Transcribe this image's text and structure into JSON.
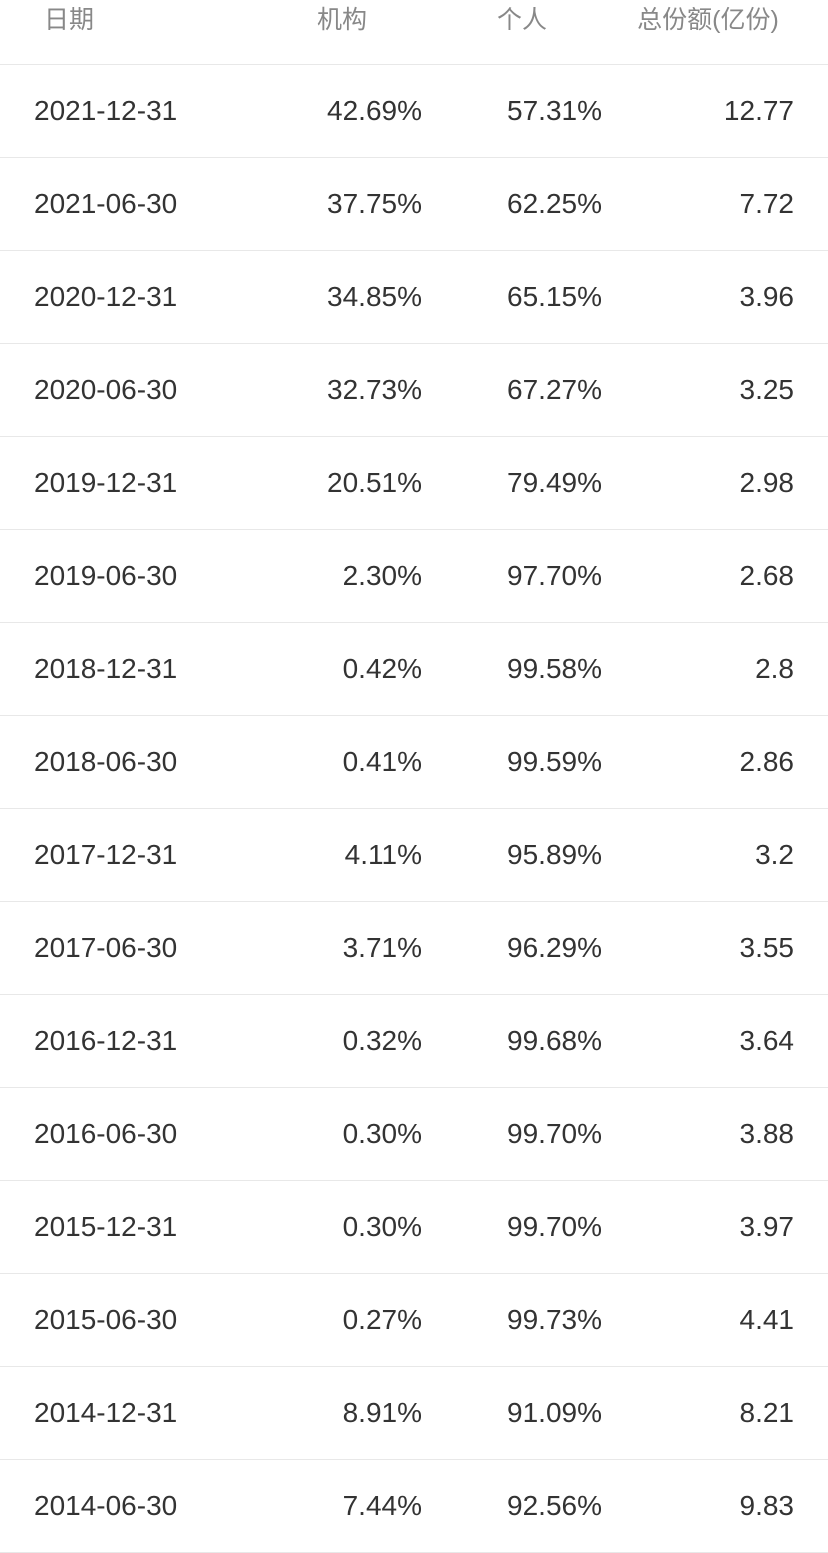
{
  "table": {
    "columns": {
      "date": "日期",
      "institution": "机构",
      "individual": "个人",
      "total": "总份额(亿份)"
    },
    "rows": [
      {
        "date": "2021-12-31",
        "institution": "42.69%",
        "individual": "57.31%",
        "total": "12.77"
      },
      {
        "date": "2021-06-30",
        "institution": "37.75%",
        "individual": "62.25%",
        "total": "7.72"
      },
      {
        "date": "2020-12-31",
        "institution": "34.85%",
        "individual": "65.15%",
        "total": "3.96"
      },
      {
        "date": "2020-06-30",
        "institution": "32.73%",
        "individual": "67.27%",
        "total": "3.25"
      },
      {
        "date": "2019-12-31",
        "institution": "20.51%",
        "individual": "79.49%",
        "total": "2.98"
      },
      {
        "date": "2019-06-30",
        "institution": "2.30%",
        "individual": "97.70%",
        "total": "2.68"
      },
      {
        "date": "2018-12-31",
        "institution": "0.42%",
        "individual": "99.58%",
        "total": "2.8"
      },
      {
        "date": "2018-06-30",
        "institution": "0.41%",
        "individual": "99.59%",
        "total": "2.86"
      },
      {
        "date": "2017-12-31",
        "institution": "4.11%",
        "individual": "95.89%",
        "total": "3.2"
      },
      {
        "date": "2017-06-30",
        "institution": "3.71%",
        "individual": "96.29%",
        "total": "3.55"
      },
      {
        "date": "2016-12-31",
        "institution": "0.32%",
        "individual": "99.68%",
        "total": "3.64"
      },
      {
        "date": "2016-06-30",
        "institution": "0.30%",
        "individual": "99.70%",
        "total": "3.88"
      },
      {
        "date": "2015-12-31",
        "institution": "0.30%",
        "individual": "99.70%",
        "total": "3.97"
      },
      {
        "date": "2015-06-30",
        "institution": "0.27%",
        "individual": "99.73%",
        "total": "4.41"
      },
      {
        "date": "2014-12-31",
        "institution": "8.91%",
        "individual": "91.09%",
        "total": "8.21"
      },
      {
        "date": "2014-06-30",
        "institution": "7.44%",
        "individual": "92.56%",
        "total": "9.83"
      }
    ],
    "styling": {
      "header_text_color": "#888888",
      "header_font_size": 25,
      "row_text_color": "#333333",
      "row_font_size": 28,
      "border_color": "#e8e8e8",
      "background_color": "#ffffff",
      "row_padding_vertical": 30,
      "row_padding_horizontal": 34
    }
  }
}
